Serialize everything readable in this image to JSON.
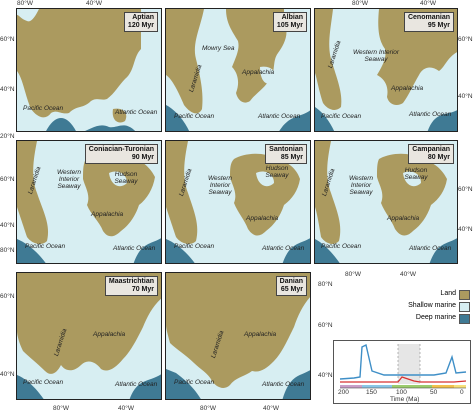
{
  "colors": {
    "land": "#ab9a5f",
    "shallow": "#d7eef2",
    "deep": "#3f7a94"
  },
  "legend": [
    {
      "label": "Land",
      "color": "#ab9a5f"
    },
    {
      "label": "Shallow marine",
      "color": "#d7eef2"
    },
    {
      "label": "Deep marine",
      "color": "#3f7a94"
    }
  ],
  "axes": {
    "top_lon": [
      "80°W",
      "40°W",
      "80°W",
      "40°W"
    ],
    "bottom_lon": [
      "80°W",
      "40°W",
      "80°W",
      "40°W"
    ],
    "mid_lon": [
      "80°W",
      "40°W"
    ],
    "left_lat": [
      "60°N",
      "40°N",
      "20°N",
      "60°N",
      "40°N",
      "80°N",
      "60°N",
      "40°N"
    ],
    "right_lat": [
      "60°N",
      "40°N",
      "60°N",
      "40°N",
      "80°N",
      "60°N",
      "40°N"
    ]
  },
  "panels": [
    {
      "stage": "Aptian",
      "age": "120 Myr",
      "labels": [
        "Pacific Ocean",
        "Atlantic Ocean"
      ]
    },
    {
      "stage": "Albian",
      "age": "105 Myr",
      "labels": [
        "Mowry Sea",
        "Laramidia",
        "Appalachia",
        "Pacific Ocean",
        "Atlantic Ocean"
      ]
    },
    {
      "stage": "Cenomanian",
      "age": "95 Myr",
      "labels": [
        "Laramidia",
        "Western Interior Seaway",
        "Appalachia",
        "Pacific Ocean",
        "Atlantic Ocean"
      ]
    },
    {
      "stage": "Coniacian-Turonian",
      "age": "90 Myr",
      "labels": [
        "Laramidia",
        "Western Interior Seaway",
        "Hudson Seaway",
        "Appalachia",
        "Pacific Ocean",
        "Atlantic Ocean"
      ]
    },
    {
      "stage": "Santonian",
      "age": "85 Myr",
      "labels": [
        "Laramidia",
        "Western Interior Seaway",
        "Hudson Seaway",
        "Appalachia",
        "Pacific Ocean",
        "Atlantic Ocean"
      ]
    },
    {
      "stage": "Campanian",
      "age": "80 Myr",
      "labels": [
        "Laramidia",
        "Western Interior Seaway",
        "Hudson Seaway",
        "Appalachia",
        "Pacific Ocean",
        "Atlantic Ocean"
      ]
    },
    {
      "stage": "Maastrichtian",
      "age": "70 Myr",
      "labels": [
        "Laramidia",
        "Appalachia",
        "Pacific Ocean",
        "Atlantic Ocean"
      ]
    },
    {
      "stage": "Danian",
      "age": "65 Myr",
      "labels": [
        "Laramidia",
        "Appalachia",
        "Pacific Ocean",
        "Atlantic Ocean"
      ]
    }
  ],
  "timeline": {
    "xlabel": "Time (Ma)",
    "ticks": [
      "200",
      "150",
      "100",
      "50",
      "0"
    ]
  }
}
